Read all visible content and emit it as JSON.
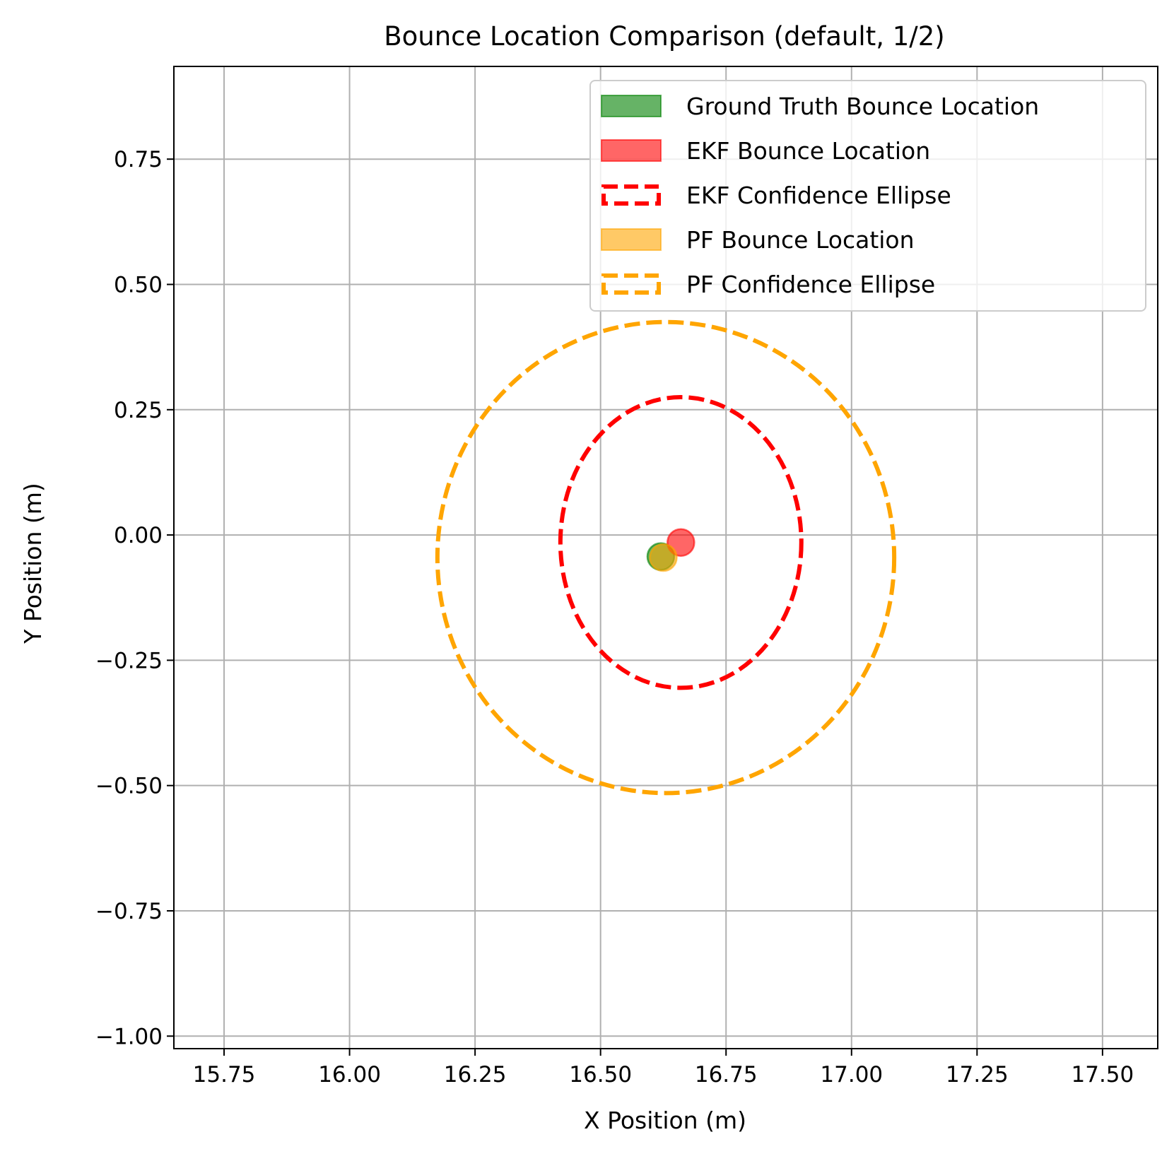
{
  "chart_data": {
    "type": "scatter",
    "title": "Bounce Location Comparison (default, 1/2)",
    "xlabel": "X Position (m)",
    "ylabel": "Y Position (m)",
    "xlim": [
      15.65,
      17.61
    ],
    "ylim": [
      -1.025,
      0.935
    ],
    "xticks": [
      15.75,
      16.0,
      16.25,
      16.5,
      16.75,
      17.0,
      17.25,
      17.5
    ],
    "xtick_labels": [
      "15.75",
      "16.00",
      "16.25",
      "16.50",
      "16.75",
      "17.00",
      "17.25",
      "17.50"
    ],
    "yticks": [
      0.75,
      0.5,
      0.25,
      0.0,
      -0.25,
      -0.5,
      -0.75,
      -1.0
    ],
    "ytick_labels": [
      "0.75",
      "0.50",
      "0.25",
      "0.00",
      "−0.25",
      "−0.50",
      "−0.75",
      "−1.00"
    ],
    "grid": true,
    "legend_position": "upper-right",
    "points": [
      {
        "name": "Ground Truth Bounce Location",
        "x": 16.62,
        "y": -0.043,
        "color": "#008000"
      },
      {
        "name": "EKF Bounce Location",
        "x": 16.66,
        "y": -0.015,
        "color": "#ff0000"
      },
      {
        "name": "PF Bounce Location",
        "x": 16.625,
        "y": -0.045,
        "color": "#ffa500"
      }
    ],
    "ellipses": [
      {
        "name": "EKF Confidence Ellipse",
        "cx": 16.66,
        "cy": -0.015,
        "rx": 0.24,
        "ry": 0.29,
        "color": "#ff0000"
      },
      {
        "name": "PF Confidence Ellipse",
        "cx": 16.63,
        "cy": -0.045,
        "rx": 0.455,
        "ry": 0.47,
        "color": "#ffa500"
      }
    ],
    "legend": [
      {
        "label": "Ground Truth Bounce Location",
        "kind": "patch",
        "color": "#008000"
      },
      {
        "label": "EKF Bounce Location",
        "kind": "patch",
        "color": "#ff0000"
      },
      {
        "label": "EKF Confidence Ellipse",
        "kind": "dashed",
        "color": "#ff0000"
      },
      {
        "label": "PF Bounce Location",
        "kind": "patch",
        "color": "#ffa500"
      },
      {
        "label": "PF Confidence Ellipse",
        "kind": "dashed",
        "color": "#ffa500"
      }
    ]
  }
}
